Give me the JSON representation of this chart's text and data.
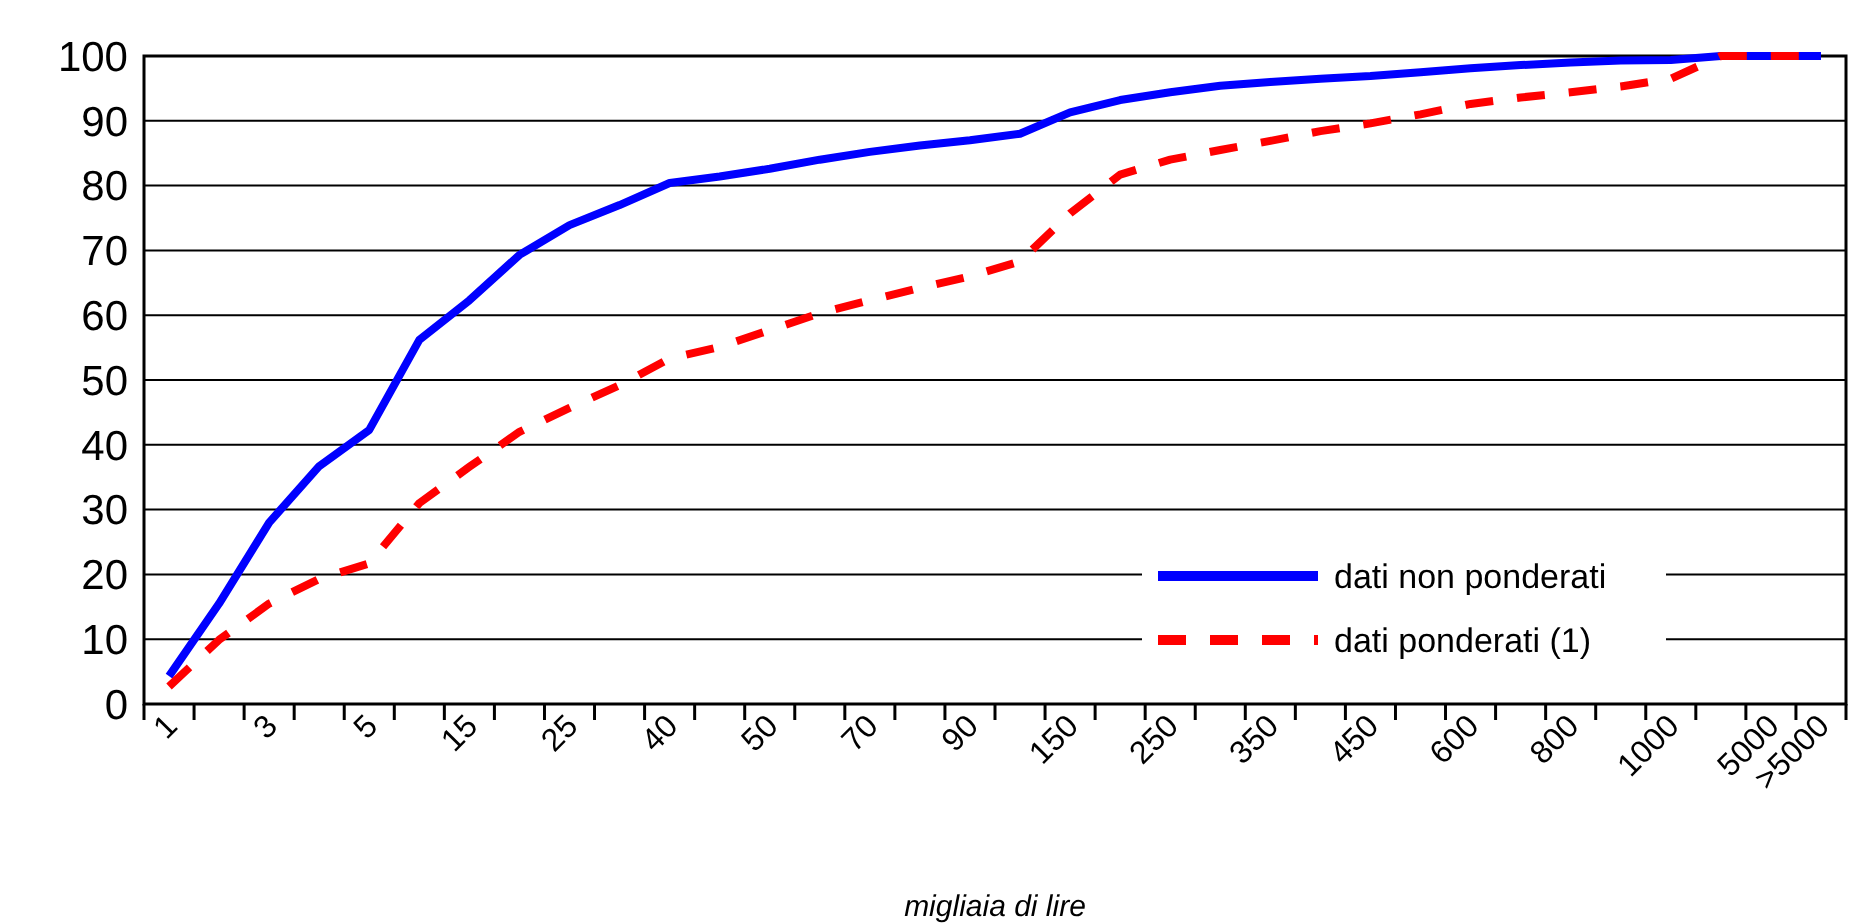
{
  "chart_data": {
    "type": "line",
    "xlabel": "migliaia di lire",
    "categories": [
      "1",
      null,
      "3",
      null,
      "5",
      null,
      "15",
      null,
      "25",
      null,
      "40",
      null,
      "50",
      null,
      "70",
      null,
      "90",
      null,
      "150",
      null,
      "250",
      null,
      "350",
      null,
      "450",
      null,
      "600",
      null,
      "800",
      null,
      "1000",
      null,
      "5000",
      ">5000"
    ],
    "series": [
      {
        "name": "dati non ponderati",
        "color": "#0000ff",
        "line_style": "solid",
        "values": [
          4.3,
          15.5,
          28,
          36.7,
          42.3,
          56.2,
          62.3,
          69.3,
          73.9,
          77,
          80.4,
          81.4,
          82.6,
          84,
          85.2,
          86.2,
          87,
          88,
          91.3,
          93.2,
          94.4,
          95.4,
          96,
          96.5,
          96.9,
          97.5,
          98.1,
          98.6,
          99,
          99.3,
          99.4,
          100,
          100,
          100
        ]
      },
      {
        "name": "dati ponderati (1)",
        "color": "#ff0000",
        "line_style": "dashed",
        "values": [
          2.7,
          9.9,
          15.5,
          19.3,
          21.7,
          31,
          36.6,
          42,
          45.7,
          49.2,
          53.3,
          55.1,
          57.7,
          60.3,
          62.3,
          64.2,
          66,
          68.3,
          75.7,
          81.7,
          84,
          85.5,
          86.9,
          88.4,
          89.6,
          91,
          92.6,
          93.6,
          94.4,
          95.3,
          96.5,
          100,
          100,
          100
        ]
      }
    ],
    "ylim": [
      0,
      100
    ],
    "yticks": [
      0,
      10,
      20,
      30,
      40,
      50,
      60,
      70,
      80,
      90,
      100
    ],
    "grid": "y",
    "legend": "bottom right",
    "marker": "none"
  }
}
